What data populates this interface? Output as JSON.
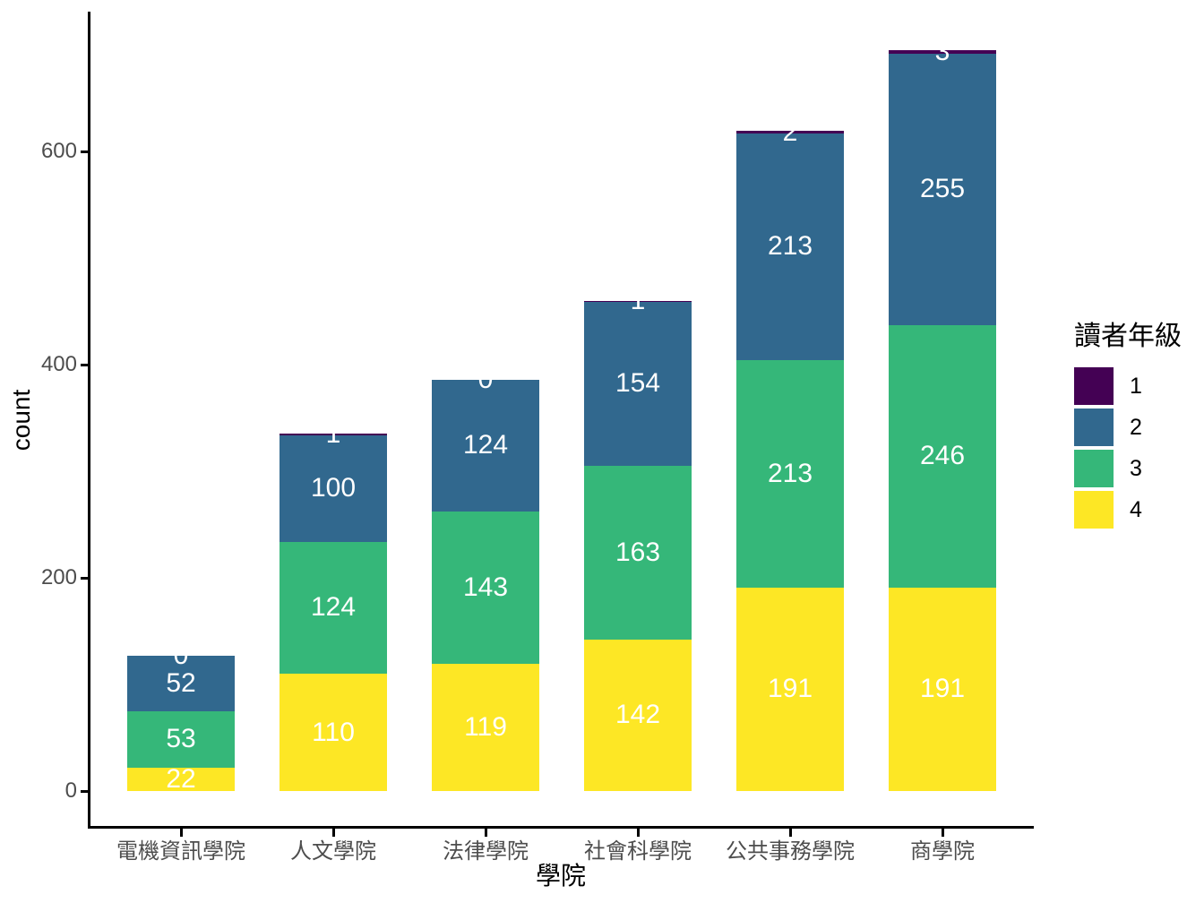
{
  "chart_data": {
    "type": "bar",
    "stacked": true,
    "title": "",
    "xlabel": "學院",
    "ylabel": "count",
    "categories": [
      "電機資訊學院",
      "人文學院",
      "法律學院",
      "社會科學院",
      "公共事務學院",
      "商學院"
    ],
    "series": [
      {
        "name": "1",
        "color": "#440154",
        "values": [
          0,
          1,
          0,
          1,
          2,
          3
        ]
      },
      {
        "name": "2",
        "color": "#31688E",
        "values": [
          52,
          100,
          124,
          154,
          213,
          255
        ]
      },
      {
        "name": "3",
        "color": "#35B779",
        "values": [
          53,
          124,
          143,
          163,
          213,
          246
        ]
      },
      {
        "name": "4",
        "color": "#FDE725",
        "values": [
          22,
          110,
          119,
          142,
          191,
          191
        ]
      }
    ],
    "yticks": [
      0,
      200,
      400,
      600
    ],
    "ylim": [
      0,
      731
    ],
    "grid": false,
    "legend": {
      "title": "讀者年級",
      "position": "right",
      "labels": [
        "1",
        "2",
        "3",
        "4"
      ]
    },
    "bar_label_color": "#FFFFFF",
    "axis_text_color": "#4D4D4D",
    "axis_line_color": "#000000"
  }
}
